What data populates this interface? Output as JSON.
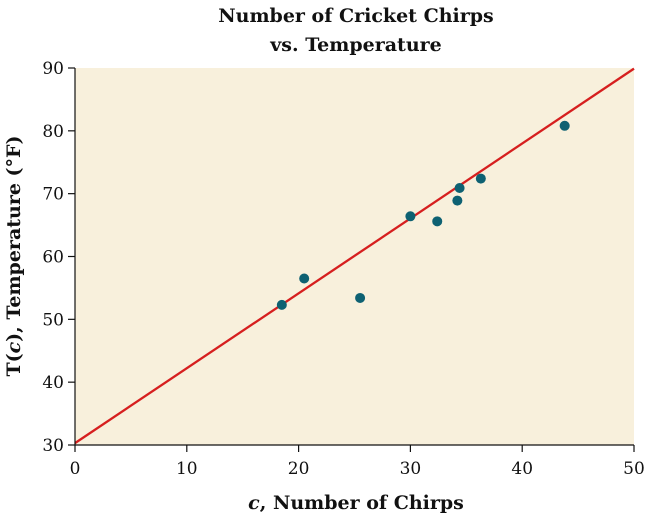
{
  "chart_data": {
    "type": "scatter",
    "title_lines": [
      "Number of Cricket Chirps",
      "vs. Temperature"
    ],
    "xlabel_italic": "c",
    "xlabel_rest": ", Number of Chirps",
    "ylabel_pre": "T(",
    "ylabel_italic": "c",
    "ylabel_rest": "), Temperature (°F)",
    "xlim": [
      0,
      50
    ],
    "ylim": [
      30,
      90
    ],
    "xticks": [
      0,
      10,
      20,
      30,
      40,
      50
    ],
    "yticks": [
      30,
      40,
      50,
      60,
      70,
      80,
      90
    ],
    "grid": false,
    "plot_background": "#f8f0dc",
    "point_color": "#0e6172",
    "line_color": "#d61f1f",
    "points": [
      {
        "x": 18.5,
        "y": 52.3
      },
      {
        "x": 20.5,
        "y": 56.5
      },
      {
        "x": 25.5,
        "y": 53.4
      },
      {
        "x": 30.0,
        "y": 66.4
      },
      {
        "x": 32.4,
        "y": 65.6
      },
      {
        "x": 34.2,
        "y": 68.9
      },
      {
        "x": 34.4,
        "y": 70.9
      },
      {
        "x": 36.3,
        "y": 72.4
      },
      {
        "x": 43.8,
        "y": 80.8
      }
    ],
    "fit_line": {
      "x": [
        0,
        50
      ],
      "y": [
        30.3,
        89.9
      ]
    }
  }
}
